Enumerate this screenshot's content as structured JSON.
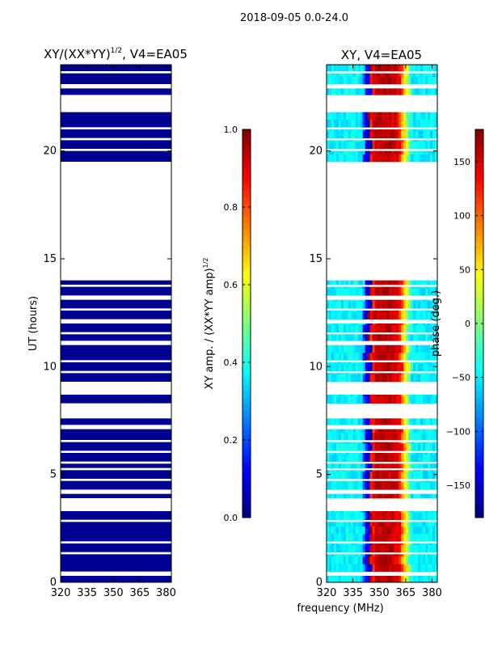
{
  "figure": {
    "suptitle": "2018-09-05 0.0-24.0",
    "shared_xlabel": "frequency (MHz)"
  },
  "colors": {
    "jet": [
      "#00007f",
      "#0000ff",
      "#007fff",
      "#00ffff",
      "#7fff7f",
      "#ffff00",
      "#ff7f00",
      "#ff0000",
      "#7f0000"
    ],
    "gap": "#ffffff"
  },
  "chart_data": [
    {
      "type": "heatmap",
      "title_main": "XY/(XX*YY)",
      "title_exp": "1/2",
      "title_rest": ", V4=EA05",
      "xlabel": "",
      "ylabel": "UT (hours)",
      "xlim": [
        320,
        383
      ],
      "ylim": [
        0,
        24
      ],
      "xticks": [
        320,
        335,
        350,
        365,
        380
      ],
      "yticks": [
        0,
        5,
        10,
        15,
        20
      ],
      "value_description": "normalized XY amplitude, near 0 everywhere (dark blue)",
      "value_level": 0.02,
      "colorbar": {
        "label_main": "XY amp. / (XX*YY amp)",
        "label_exp": "1/2",
        "range": [
          0.0,
          1.0
        ],
        "ticks": [
          0.0,
          0.2,
          0.4,
          0.6,
          0.8,
          1.0
        ],
        "tick_labels": [
          "0.0",
          "0.2",
          "0.4",
          "0.6",
          "0.8",
          "1.0"
        ]
      }
    },
    {
      "type": "heatmap",
      "title_main": "XY, V4=EA05",
      "xlabel": "frequency (MHz)",
      "ylabel": "",
      "xlim": [
        320,
        383
      ],
      "ylim": [
        0,
        24
      ],
      "xticks": [
        320,
        335,
        350,
        365,
        380
      ],
      "yticks": [
        0,
        5,
        10,
        15,
        20
      ],
      "value_description": "XY phase vs frequency: about -50 deg below 341 MHz, ~-150 deg at 342-345 MHz, +150 deg at 348-362 MHz, ~+50 deg at 364-368 MHz, ~-50 deg above 369 MHz",
      "phase_profile": {
        "freq": [
          320,
          338,
          341,
          342,
          344.5,
          346,
          348,
          356,
          362,
          364,
          366,
          367,
          369,
          383
        ],
        "deg": [
          -50,
          -45,
          -60,
          -130,
          -150,
          120,
          155,
          160,
          140,
          60,
          40,
          -20,
          -50,
          -50
        ]
      },
      "colorbar": {
        "label_main": "phase (deg.)",
        "range": [
          -180,
          180
        ],
        "ticks": [
          -150,
          -100,
          -50,
          0,
          50,
          100,
          150
        ],
        "tick_labels": [
          "−150",
          "−100",
          "−50",
          "0",
          "50",
          "100",
          "150"
        ]
      }
    }
  ],
  "valid_time_ranges_hours": [
    [
      0.0,
      0.3
    ],
    [
      0.5,
      1.3
    ],
    [
      1.4,
      1.8
    ],
    [
      1.9,
      2.8
    ],
    [
      2.9,
      3.3
    ],
    [
      3.9,
      4.1
    ],
    [
      4.3,
      4.7
    ],
    [
      4.8,
      5.2
    ],
    [
      5.3,
      5.5
    ],
    [
      5.6,
      6.0
    ],
    [
      6.1,
      6.5
    ],
    [
      6.6,
      7.1
    ],
    [
      7.3,
      7.6
    ],
    [
      8.3,
      8.7
    ],
    [
      9.3,
      9.7
    ],
    [
      9.8,
      10.2
    ],
    [
      10.3,
      11.0
    ],
    [
      11.2,
      11.5
    ],
    [
      11.6,
      12.0
    ],
    [
      12.2,
      12.6
    ],
    [
      12.7,
      13.1
    ],
    [
      13.3,
      13.7
    ],
    [
      13.8,
      14.0
    ],
    [
      19.5,
      20.0
    ],
    [
      20.1,
      20.5
    ],
    [
      20.6,
      21.0
    ],
    [
      21.1,
      21.8
    ],
    [
      22.6,
      22.9
    ],
    [
      23.1,
      23.6
    ],
    [
      23.7,
      24.0
    ]
  ]
}
